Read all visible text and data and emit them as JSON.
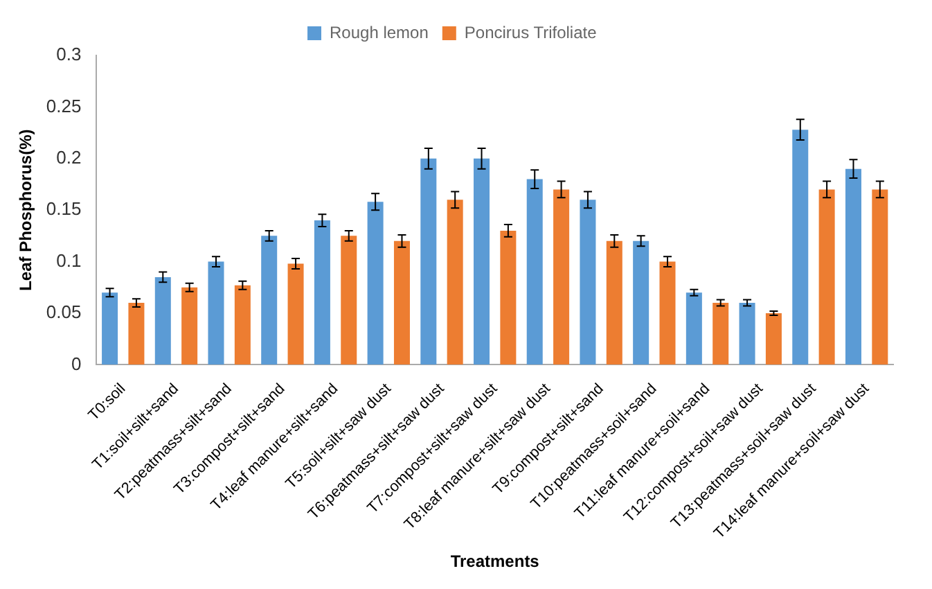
{
  "chart_data": {
    "type": "bar",
    "xlabel": "Treatments",
    "ylabel": "Leaf Phosphorus(%)",
    "categories": [
      "T0:soil",
      "T1:soil+silt+sand",
      "T2:peatmass+silt+sand",
      "T3:compost+silt+sand",
      "T4:leaf manure+silt+sand",
      "T5:soil+silt+saw dust",
      "T6:peatmass+silt+saw dust",
      "T7:compost+silt+saw dust",
      "T8:leaf manure+silt+saw dust",
      "T9:compost+silt+sand",
      "T10:peatmass+soil+sand",
      "T11:leaf manure+soil+sand",
      "T12:compost+soil+saw dust",
      "T13:peatmass+soil+saw dust",
      "T14:leaf manure+soil+saw dust"
    ],
    "series": [
      {
        "name": "Rough lemon",
        "color": "#5b9bd5",
        "values": [
          0.07,
          0.085,
          0.1,
          0.125,
          0.14,
          0.158,
          0.2,
          0.2,
          0.18,
          0.16,
          0.12,
          0.07,
          0.06,
          0.228,
          0.19
        ],
        "errors": [
          0.004,
          0.005,
          0.005,
          0.005,
          0.006,
          0.008,
          0.01,
          0.01,
          0.009,
          0.008,
          0.005,
          0.003,
          0.003,
          0.01,
          0.009
        ]
      },
      {
        "name": "Poncirus Trifoliate",
        "color": "#ed7d31",
        "values": [
          0.06,
          0.075,
          0.077,
          0.098,
          0.125,
          0.12,
          0.16,
          0.13,
          0.17,
          0.12,
          0.1,
          0.06,
          0.05,
          0.17,
          0.17
        ],
        "errors": [
          0.004,
          0.004,
          0.004,
          0.005,
          0.005,
          0.006,
          0.008,
          0.006,
          0.008,
          0.006,
          0.005,
          0.003,
          0.002,
          0.008,
          0.008
        ]
      }
    ],
    "ylim": [
      0,
      0.3
    ],
    "yticks": [
      0,
      0.05,
      0.1,
      0.15,
      0.2,
      0.25,
      0.3
    ],
    "grid": false,
    "legend": "top"
  }
}
